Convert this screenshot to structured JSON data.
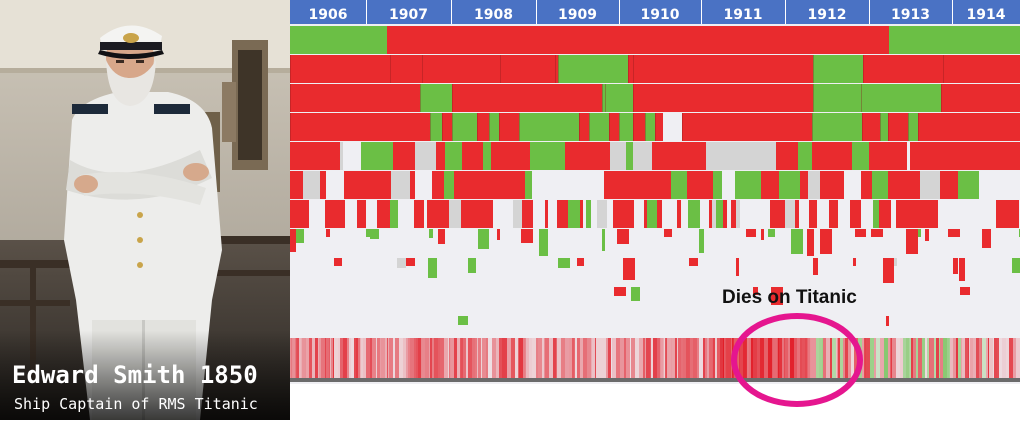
{
  "caption": {
    "name": "Edward Smith 1850",
    "role": "Ship Captain of RMS Titanic"
  },
  "timeline": {
    "years": [
      "1906",
      "1907",
      "1908",
      "1909",
      "1910",
      "1911",
      "1912",
      "1913",
      "1914"
    ],
    "annotation": "Dies on Titanic"
  },
  "colors": {
    "header": "#4a72c4",
    "positive": "#6bbf45",
    "negative": "#e92b2e",
    "neutral": "#d4d4d4",
    "highlight_ring": "#e5168f",
    "background": "#efeff3"
  },
  "icons": {
    "portrait": "captain-portrait"
  }
}
